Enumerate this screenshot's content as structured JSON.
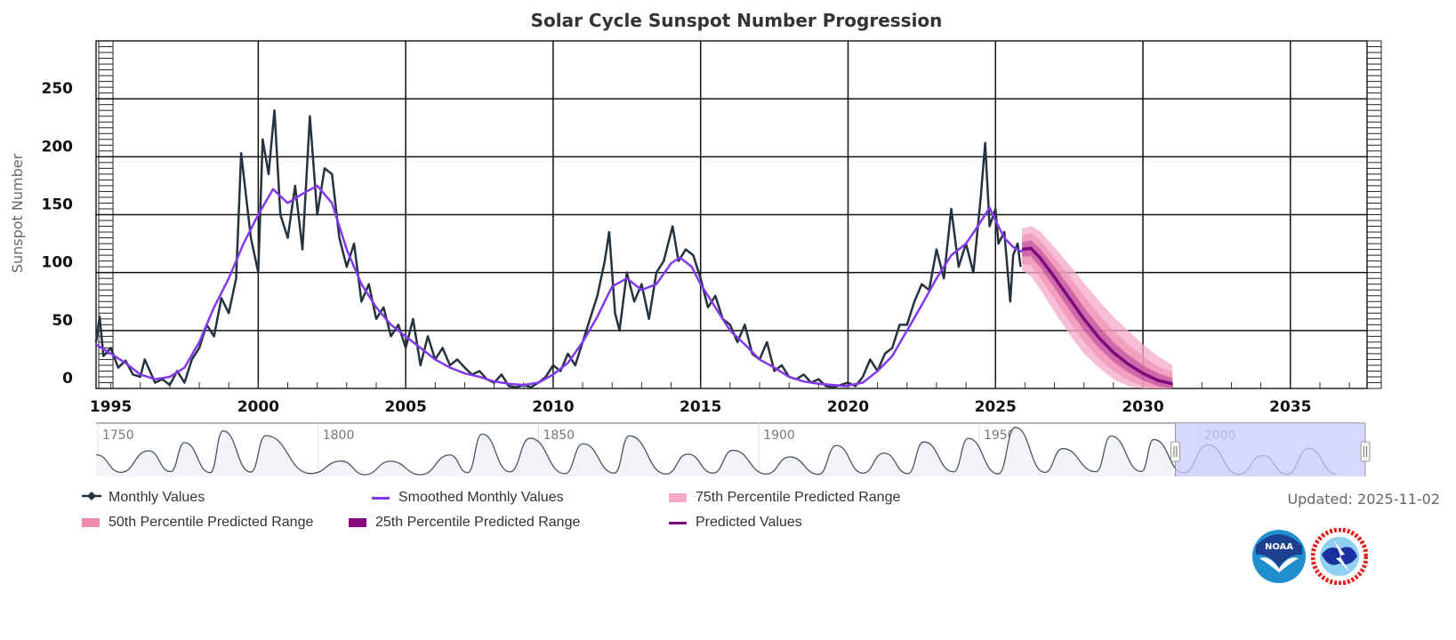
{
  "chart_data": {
    "type": "line",
    "title": "Solar Cycle Sunspot Number Progression",
    "ylabel": "Sunspot Number",
    "xlabel": "",
    "xlim": [
      1994.5,
      2037.6
    ],
    "ylim": [
      0,
      300
    ],
    "x_ticks": [
      "1995",
      "2000",
      "2005",
      "2010",
      "2015",
      "2020",
      "2025",
      "2030",
      "2035"
    ],
    "y_ticks": [
      "0",
      "50",
      "100",
      "150",
      "200",
      "250"
    ],
    "grid": true,
    "legend_placement": "bottom",
    "colors": {
      "monthly": "#25323f",
      "smoothed": "#8338ec",
      "predicted": "#7d0a7d",
      "p75": "#f4a9c9",
      "p50": "#f08aae",
      "p25": "#8b0a80",
      "navigator_selection": "#c8ccfa"
    },
    "series": [
      {
        "name": "Monthly Values",
        "type": "line",
        "marker": "diamond",
        "x": [
          1994.5,
          1994.62,
          1994.75,
          1995.0,
          1995.25,
          1995.5,
          1995.75,
          1996.0,
          1996.15,
          1996.5,
          1996.75,
          1997.0,
          1997.25,
          1997.5,
          1997.75,
          1998.0,
          1998.25,
          1998.5,
          1998.75,
          1999.0,
          1999.25,
          1999.42,
          1999.75,
          2000.0,
          2000.15,
          2000.35,
          2000.55,
          2000.75,
          2001.0,
          2001.25,
          2001.5,
          2001.75,
          2002.0,
          2002.25,
          2002.5,
          2002.75,
          2003.0,
          2003.25,
          2003.5,
          2003.75,
          2004.0,
          2004.25,
          2004.5,
          2004.75,
          2005.0,
          2005.25,
          2005.5,
          2005.75,
          2006.0,
          2006.25,
          2006.5,
          2006.75,
          2007.0,
          2007.25,
          2007.5,
          2007.75,
          2008.0,
          2008.25,
          2008.5,
          2008.75,
          2009.0,
          2009.25,
          2009.5,
          2009.75,
          2010.0,
          2010.25,
          2010.5,
          2010.75,
          2011.0,
          2011.25,
          2011.5,
          2011.75,
          2011.9,
          2012.1,
          2012.25,
          2012.5,
          2012.75,
          2013.0,
          2013.25,
          2013.5,
          2013.75,
          2014.05,
          2014.25,
          2014.5,
          2014.75,
          2015.0,
          2015.25,
          2015.5,
          2015.75,
          2016.0,
          2016.25,
          2016.5,
          2016.75,
          2017.0,
          2017.25,
          2017.5,
          2017.75,
          2018.0,
          2018.25,
          2018.5,
          2018.75,
          2019.0,
          2019.25,
          2019.5,
          2019.75,
          2020.0,
          2020.25,
          2020.5,
          2020.75,
          2021.0,
          2021.25,
          2021.5,
          2021.75,
          2022.0,
          2022.25,
          2022.5,
          2022.75,
          2023.0,
          2023.25,
          2023.5,
          2023.75,
          2024.0,
          2024.25,
          2024.5,
          2024.65,
          2024.8,
          2025.0,
          2025.1,
          2025.3,
          2025.5,
          2025.6,
          2025.75,
          2025.85
        ],
        "y": [
          40,
          62,
          28,
          35,
          18,
          24,
          12,
          10,
          25,
          5,
          8,
          3,
          15,
          5,
          25,
          35,
          55,
          45,
          78,
          65,
          95,
          203,
          130,
          100,
          215,
          185,
          240,
          150,
          130,
          175,
          120,
          235,
          150,
          190,
          185,
          130,
          105,
          125,
          75,
          90,
          60,
          70,
          45,
          55,
          35,
          60,
          20,
          45,
          25,
          35,
          20,
          25,
          18,
          12,
          15,
          8,
          5,
          12,
          2,
          1,
          3,
          1,
          5,
          10,
          20,
          15,
          30,
          20,
          40,
          60,
          80,
          110,
          135,
          65,
          50,
          100,
          75,
          90,
          60,
          100,
          110,
          140,
          110,
          120,
          115,
          95,
          70,
          80,
          60,
          55,
          40,
          55,
          30,
          25,
          40,
          15,
          20,
          10,
          8,
          12,
          5,
          8,
          2,
          1,
          3,
          5,
          2,
          10,
          25,
          15,
          30,
          35,
          55,
          55,
          75,
          90,
          85,
          120,
          95,
          155,
          105,
          125,
          100,
          165,
          212,
          140,
          155,
          125,
          135,
          75,
          115,
          125,
          105
        ]
      },
      {
        "name": "Smoothed Monthly Values",
        "type": "line",
        "x": [
          1994.5,
          1995.0,
          1995.5,
          1996.0,
          1996.5,
          1997.0,
          1997.5,
          1998.0,
          1998.5,
          1999.0,
          1999.5,
          2000.0,
          2000.5,
          2001.0,
          2001.5,
          2002.0,
          2002.5,
          2003.0,
          2003.5,
          2004.0,
          2004.5,
          2005.0,
          2005.5,
          2006.0,
          2006.5,
          2007.0,
          2007.5,
          2008.0,
          2008.5,
          2009.0,
          2009.5,
          2010.0,
          2010.5,
          2011.0,
          2011.5,
          2012.0,
          2012.5,
          2013.0,
          2013.5,
          2014.0,
          2014.3,
          2014.7,
          2015.0,
          2015.5,
          2016.0,
          2016.5,
          2017.0,
          2017.5,
          2018.0,
          2018.5,
          2019.0,
          2019.5,
          2019.9,
          2020.5,
          2021.0,
          2021.5,
          2022.0,
          2022.5,
          2023.0,
          2023.5,
          2024.0,
          2024.4,
          2024.8,
          2025.0,
          2025.3,
          2025.6,
          2025.9
        ],
        "y": [
          38,
          30,
          22,
          12,
          8,
          10,
          18,
          40,
          70,
          95,
          125,
          150,
          172,
          160,
          168,
          175,
          160,
          120,
          90,
          70,
          55,
          45,
          35,
          25,
          18,
          13,
          10,
          6,
          4,
          3,
          5,
          12,
          22,
          40,
          62,
          88,
          95,
          85,
          90,
          108,
          113,
          105,
          90,
          70,
          50,
          38,
          25,
          18,
          10,
          6,
          4,
          3,
          2,
          5,
          15,
          28,
          50,
          72,
          95,
          115,
          125,
          140,
          156,
          145,
          130,
          122,
          118
        ]
      },
      {
        "name": "Predicted Values",
        "type": "line",
        "x": [
          2025.9,
          2026.2,
          2026.5,
          2027.0,
          2027.5,
          2028.0,
          2028.5,
          2029.0,
          2029.5,
          2030.0,
          2030.5,
          2031.0
        ],
        "y": [
          120,
          121,
          113,
          96,
          78,
          60,
          44,
          31,
          21,
          13,
          7,
          4
        ]
      },
      {
        "name": "25th Percentile Predicted Range",
        "type": "area",
        "x": [
          2025.9,
          2026.2,
          2026.5,
          2027.0,
          2027.5,
          2028.0,
          2028.5,
          2029.0,
          2029.5,
          2030.0,
          2030.5,
          2031.0
        ],
        "low": [
          114,
          114,
          105,
          87,
          68,
          50,
          35,
          23,
          14,
          7,
          2,
          0
        ],
        "high": [
          126,
          128,
          121,
          105,
          88,
          70,
          54,
          40,
          29,
          20,
          13,
          9
        ]
      },
      {
        "name": "50th Percentile Predicted Range",
        "type": "area",
        "x": [
          2025.9,
          2026.2,
          2026.5,
          2027.0,
          2027.5,
          2028.0,
          2028.5,
          2029.0,
          2029.5,
          2030.0,
          2030.5,
          2031.0
        ],
        "low": [
          108,
          106,
          96,
          77,
          58,
          40,
          26,
          15,
          7,
          2,
          0,
          0
        ],
        "high": [
          132,
          134,
          128,
          113,
          97,
          80,
          64,
          50,
          38,
          28,
          19,
          14
        ]
      },
      {
        "name": "75th Percentile Predicted Range",
        "type": "area",
        "x": [
          2025.9,
          2026.2,
          2026.5,
          2027.0,
          2027.5,
          2028.0,
          2028.5,
          2029.0,
          2029.5,
          2030.0,
          2030.5,
          2031.0
        ],
        "low": [
          102,
          97,
          86,
          66,
          47,
          30,
          18,
          8,
          2,
          0,
          0,
          0
        ],
        "high": [
          138,
          140,
          136,
          122,
          107,
          91,
          76,
          62,
          50,
          38,
          28,
          20
        ]
      }
    ],
    "navigator": {
      "xlim": [
        1749.6,
        2037.6
      ],
      "selected_range": [
        1994.5,
        2037.6
      ],
      "x_ticks": [
        "1750",
        "1800",
        "1850",
        "1900",
        "1950",
        "2000"
      ],
      "x": [
        1749.6,
        1755.2,
        1761.5,
        1766.5,
        1769.7,
        1775.5,
        1778.4,
        1784.7,
        1788.1,
        1798.3,
        1805.2,
        1810.6,
        1816.4,
        1823.3,
        1829.9,
        1833.9,
        1837.2,
        1843.5,
        1848.1,
        1856.0,
        1860.1,
        1867.2,
        1870.6,
        1878.9,
        1883.9,
        1889.6,
        1894.1,
        1901.7,
        1907.0,
        1913.6,
        1917.6,
        1923.6,
        1928.4,
        1933.8,
        1937.4,
        1944.2,
        1947.5,
        1954.3,
        1958.2,
        1964.9,
        1968.9,
        1976.5,
        1979.9,
        1986.8,
        1989.6,
        1996.4,
        2001.9,
        2008.9,
        2014.3,
        2019.9,
        2024.8,
        2031.0
      ],
      "y": [
        120,
        14,
        144,
        18,
        193,
        12,
        264,
        16,
        235,
        7,
        82,
        0,
        81,
        0,
        119,
        12,
        245,
        17,
        220,
        6,
        186,
        9,
        234,
        4,
        124,
        9,
        147,
        4,
        107,
        2,
        176,
        9,
        130,
        6,
        198,
        17,
        219,
        5,
        285,
        14,
        157,
        18,
        233,
        19,
        212,
        11,
        180,
        2,
        116,
        2,
        160,
        4
      ]
    }
  },
  "legend": {
    "items": [
      {
        "label": "Monthly Values",
        "icon": "diamond-line"
      },
      {
        "label": "Smoothed Monthly Values",
        "icon": "line"
      },
      {
        "label": "75th Percentile Predicted Range",
        "icon": "area"
      },
      {
        "label": "50th Percentile Predicted Range",
        "icon": "area"
      },
      {
        "label": "25th Percentile Predicted Range",
        "icon": "area"
      },
      {
        "label": "Predicted Values",
        "icon": "line"
      }
    ]
  },
  "updated": "Updated: 2025-11-02",
  "logos": {
    "noaa": "NOAA",
    "nws": "NATIONAL WEATHER SERVICE"
  }
}
